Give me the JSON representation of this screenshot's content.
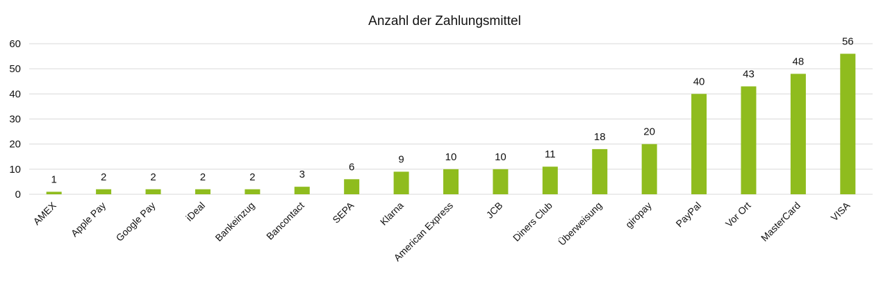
{
  "chart_data": {
    "type": "bar",
    "title": "Anzahl der Zahlungsmittel",
    "xlabel": "",
    "ylabel": "",
    "ylim": [
      0,
      60
    ],
    "yticks": [
      0,
      10,
      20,
      30,
      40,
      50,
      60
    ],
    "grid": true,
    "legend": "none",
    "bar_color": "#8fbc1e",
    "categories": [
      "AMEX",
      "Apple Pay",
      "Google Pay",
      "iDeal",
      "Bankeinzug",
      "Bancontact",
      "SEPA",
      "Klarna",
      "American Express",
      "JCB",
      "Diners Club",
      "Überweisung",
      "giropay",
      "PayPal",
      "Vor Ort",
      "MasterCard",
      "VISA"
    ],
    "values": [
      1,
      2,
      2,
      2,
      2,
      3,
      6,
      9,
      10,
      10,
      11,
      18,
      20,
      40,
      43,
      48,
      56
    ]
  }
}
